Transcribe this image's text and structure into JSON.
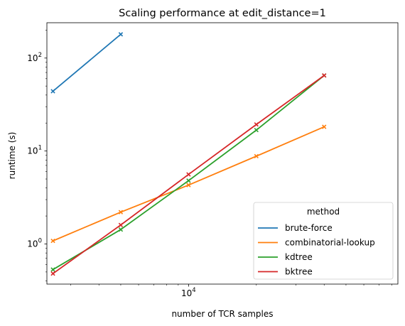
{
  "chart_data": {
    "type": "line",
    "title": "Scaling performance at edit_distance=1",
    "xlabel": "number of TCR samples",
    "ylabel": "runtime (s)",
    "xscale": "log",
    "yscale": "log",
    "xlim": [
      2350,
      85000
    ],
    "ylim": [
      0.37,
      240
    ],
    "x_tick_labels": [
      {
        "value": 10000,
        "base": "10",
        "exp": "4"
      }
    ],
    "y_tick_labels": [
      {
        "value": 1,
        "base": "10",
        "exp": "0"
      },
      {
        "value": 10,
        "base": "10",
        "exp": "1"
      },
      {
        "value": 100,
        "base": "10",
        "exp": "2"
      }
    ],
    "legend": {
      "title": "method",
      "placement": "lower-right"
    },
    "marker": "x",
    "series": [
      {
        "name": "brute-force",
        "color": "#1f77b4",
        "x": [
          2500,
          5000
        ],
        "y": [
          44,
          180
        ]
      },
      {
        "name": "combinatorial-lookup",
        "color": "#ff7f0e",
        "x": [
          2500,
          5000,
          10000,
          20000,
          40000
        ],
        "y": [
          1.08,
          2.2,
          4.3,
          8.8,
          18.2
        ]
      },
      {
        "name": "kdtree",
        "color": "#2ca02c",
        "x": [
          2500,
          5000,
          10000,
          20000,
          40000
        ],
        "y": [
          0.53,
          1.43,
          4.8,
          16.8,
          65
        ]
      },
      {
        "name": "bktree",
        "color": "#d62728",
        "x": [
          2500,
          5000,
          10000,
          20000,
          40000
        ],
        "y": [
          0.48,
          1.6,
          5.6,
          19.3,
          65
        ]
      }
    ]
  }
}
